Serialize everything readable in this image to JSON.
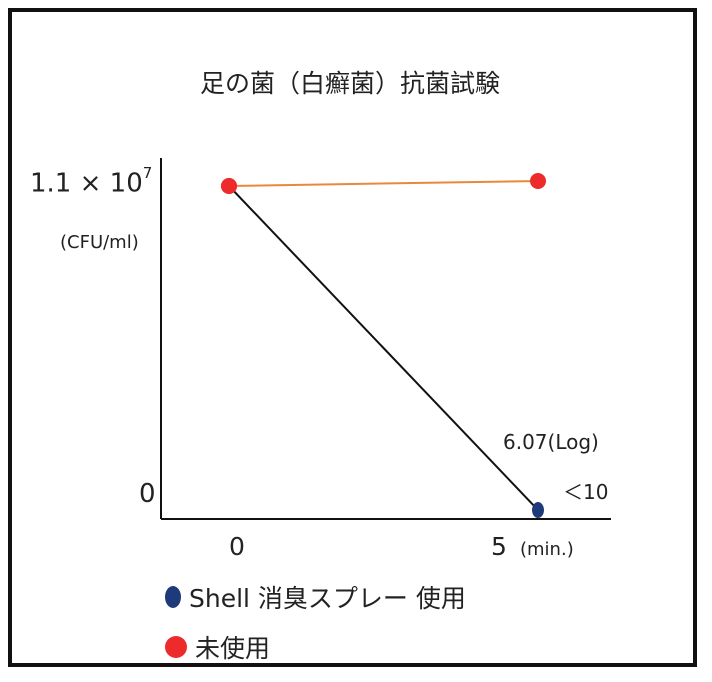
{
  "chart_data": {
    "type": "line",
    "title": "足の菌（白癬菌）抗菌試験",
    "y_top_label": {
      "base": "1.1 × 10",
      "exp": "7"
    },
    "y_unit": "(CFU/ml)",
    "y_zero_label": "0",
    "x": [
      0,
      5
    ],
    "x_tick_labels": [
      "0",
      "5"
    ],
    "x_unit": "(min.)",
    "ylim": [
      0,
      11000000
    ],
    "series": [
      {
        "name": "Shell 消臭スプレー 使用",
        "values": [
          11000000,
          10
        ],
        "line_color": "#111111",
        "marker_color": "#1f3a7a"
      },
      {
        "name": "未使用",
        "values": [
          11000000,
          11200000
        ],
        "line_color": "#e8893a",
        "marker_color": "#ee2b2b"
      }
    ],
    "annotations": [
      "6.07(Log)",
      "＜10"
    ],
    "grid": false,
    "legend_position": "bottom-left"
  }
}
